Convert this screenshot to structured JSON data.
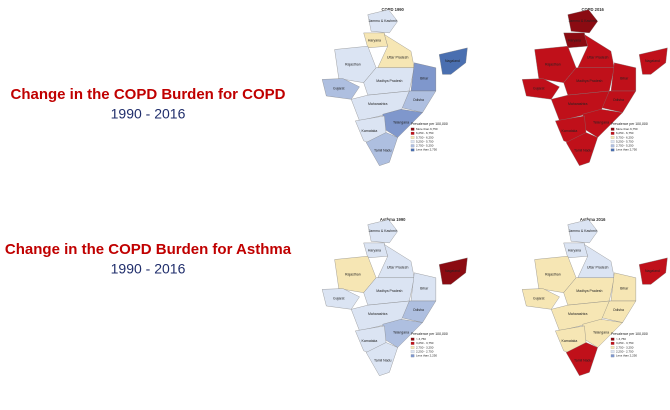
{
  "slides": [
    {
      "heading": "Change in the COPD Burden for COPD",
      "years": "1990 - 2016",
      "maps": [
        {
          "title": "COPD 1990",
          "regions": [
            {
              "name": "Jammu & Kashmir",
              "color": "#dbe4f3"
            },
            {
              "name": "Haryana",
              "color": "#f6e6b4"
            },
            {
              "name": "Rajasthan",
              "color": "#dbe4f3"
            },
            {
              "name": "Gujarat",
              "color": "#aebfe0"
            },
            {
              "name": "Uttar Pradesh",
              "color": "#f6e6b4"
            },
            {
              "name": "Madhya Pradesh",
              "color": "#dbe4f3"
            },
            {
              "name": "Bihar",
              "color": "#7f97cc"
            },
            {
              "name": "Odisha",
              "color": "#aebfe0"
            },
            {
              "name": "Maharashtra",
              "color": "#dbe4f3"
            },
            {
              "name": "Telangana",
              "color": "#7f97cc"
            },
            {
              "name": "Karnataka",
              "color": "#dbe4f3"
            },
            {
              "name": "Tamil Nadu",
              "color": "#aebfe0"
            },
            {
              "name": "Nagaland",
              "color": "#4a6fb0"
            }
          ],
          "legend": {
            "title": "Prevalence per 100,000",
            "items": [
              {
                "label": "More than 6,750",
                "color": "#8b0b12"
              },
              {
                "label": "6,250 - 6,750",
                "color": "#c0101a"
              },
              {
                "label": "5,750 - 6,250",
                "color": "#f6e6b4"
              },
              {
                "label": "5,250 - 5,750",
                "color": "#dbe4f3"
              },
              {
                "label": "2,750 - 5,250",
                "color": "#aebfe0"
              },
              {
                "label": "Less than 2,750",
                "color": "#4a6fb0"
              }
            ]
          }
        },
        {
          "title": "COPD 2016",
          "regions": [
            {
              "name": "Jammu & Kashmir",
              "color": "#8b0b12"
            },
            {
              "name": "Haryana",
              "color": "#8b0b12"
            },
            {
              "name": "Rajasthan",
              "color": "#c0101a"
            },
            {
              "name": "Gujarat",
              "color": "#c0101a"
            },
            {
              "name": "Uttar Pradesh",
              "color": "#c0101a"
            },
            {
              "name": "Madhya Pradesh",
              "color": "#c0101a"
            },
            {
              "name": "Bihar",
              "color": "#c0101a"
            },
            {
              "name": "Odisha",
              "color": "#c0101a"
            },
            {
              "name": "Maharashtra",
              "color": "#c0101a"
            },
            {
              "name": "Telangana",
              "color": "#c0101a"
            },
            {
              "name": "Karnataka",
              "color": "#c0101a"
            },
            {
              "name": "Tamil Nadu",
              "color": "#c0101a"
            },
            {
              "name": "Nagaland",
              "color": "#c0101a"
            }
          ],
          "legend": {
            "title": "Prevalence per 100,000",
            "items": [
              {
                "label": "More than 6,750",
                "color": "#8b0b12"
              },
              {
                "label": "6,250 - 6,750",
                "color": "#c0101a"
              },
              {
                "label": "5,750 - 6,250",
                "color": "#f6e6b4"
              },
              {
                "label": "5,250 - 5,750",
                "color": "#dbe4f3"
              },
              {
                "label": "2,750 - 5,250",
                "color": "#aebfe0"
              },
              {
                "label": "Less than 2,750",
                "color": "#4a6fb0"
              }
            ]
          }
        }
      ]
    },
    {
      "heading": "Change in the COPD Burden for Asthma",
      "years": "1990 - 2016",
      "maps": [
        {
          "title": "Asthma 1990",
          "regions": [
            {
              "name": "Jammu & Kashmir",
              "color": "#dbe4f3"
            },
            {
              "name": "Haryana",
              "color": "#dbe4f3"
            },
            {
              "name": "Rajasthan",
              "color": "#f6e6b4"
            },
            {
              "name": "Gujarat",
              "color": "#dbe4f3"
            },
            {
              "name": "Uttar Pradesh",
              "color": "#dbe4f3"
            },
            {
              "name": "Madhya Pradesh",
              "color": "#dbe4f3"
            },
            {
              "name": "Bihar",
              "color": "#dbe4f3"
            },
            {
              "name": "Odisha",
              "color": "#aebfe0"
            },
            {
              "name": "Maharashtra",
              "color": "#dbe4f3"
            },
            {
              "name": "Telangana",
              "color": "#aebfe0"
            },
            {
              "name": "Karnataka",
              "color": "#dbe4f3"
            },
            {
              "name": "Tamil Nadu",
              "color": "#dbe4f3"
            },
            {
              "name": "Nagaland",
              "color": "#8b0b12"
            }
          ],
          "legend": {
            "title": "Prevalence per 100,000",
            "items": [
              {
                "label": "> 3,750",
                "color": "#8b0b12"
              },
              {
                "label": "3,250 - 3,750",
                "color": "#c0101a"
              },
              {
                "label": "2,750 - 3,250",
                "color": "#f6e6b4"
              },
              {
                "label": "2,250 - 2,750",
                "color": "#dbe4f3"
              },
              {
                "label": "Less than 2,250",
                "color": "#7f97cc"
              }
            ]
          }
        },
        {
          "title": "Asthma 2016",
          "regions": [
            {
              "name": "Jammu & Kashmir",
              "color": "#dbe4f3"
            },
            {
              "name": "Haryana",
              "color": "#dbe4f3"
            },
            {
              "name": "Rajasthan",
              "color": "#f6e6b4"
            },
            {
              "name": "Gujarat",
              "color": "#f6e6b4"
            },
            {
              "name": "Uttar Pradesh",
              "color": "#dbe4f3"
            },
            {
              "name": "Madhya Pradesh",
              "color": "#f6e6b4"
            },
            {
              "name": "Bihar",
              "color": "#f6e6b4"
            },
            {
              "name": "Odisha",
              "color": "#f6e6b4"
            },
            {
              "name": "Maharashtra",
              "color": "#f6e6b4"
            },
            {
              "name": "Telangana",
              "color": "#f6e6b4"
            },
            {
              "name": "Karnataka",
              "color": "#f6e6b4"
            },
            {
              "name": "Tamil Nadu",
              "color": "#c0101a"
            },
            {
              "name": "Nagaland",
              "color": "#c0101a"
            }
          ],
          "legend": {
            "title": "Prevalence per 100,000",
            "items": [
              {
                "label": "> 3,750",
                "color": "#8b0b12"
              },
              {
                "label": "3,250 - 3,750",
                "color": "#c0101a"
              },
              {
                "label": "2,750 - 3,250",
                "color": "#f6e6b4"
              },
              {
                "label": "2,250 - 2,750",
                "color": "#dbe4f3"
              },
              {
                "label": "Less than 2,250",
                "color": "#7f97cc"
              }
            ]
          }
        }
      ]
    }
  ]
}
